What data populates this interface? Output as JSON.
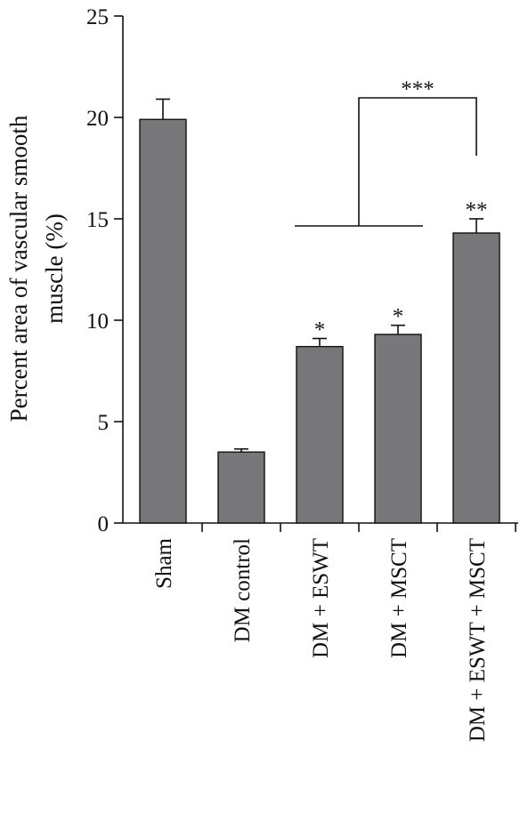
{
  "chart_data": {
    "type": "bar",
    "title": "",
    "ylabel_lines": [
      "Percent area of vascular smooth",
      "muscle (%)"
    ],
    "xlabel": "",
    "ylim": [
      0,
      25
    ],
    "yticks": [
      0,
      5,
      10,
      15,
      20,
      25
    ],
    "ytick_labels": [
      "0",
      "5",
      "10",
      "15",
      "20",
      "25"
    ],
    "categories": [
      "Sham",
      "DM control",
      "DM + ESWT",
      "DM + MSCT",
      "DM + ESWT + MSCT"
    ],
    "values": [
      19.9,
      3.5,
      8.7,
      9.3,
      14.3
    ],
    "error_plus": [
      1.0,
      0.15,
      0.4,
      0.45,
      0.7
    ],
    "significance": [
      "",
      "",
      "*",
      "*",
      "**"
    ],
    "bracket": {
      "label": "***",
      "from_categories": [
        "DM + ESWT",
        "DM + MSCT"
      ],
      "to_category": "DM + ESWT + MSCT"
    },
    "grid": false,
    "legend": "none",
    "colors": {
      "bar_fill": "#77777a",
      "stroke": "#111111",
      "background": "#ffffff"
    }
  }
}
